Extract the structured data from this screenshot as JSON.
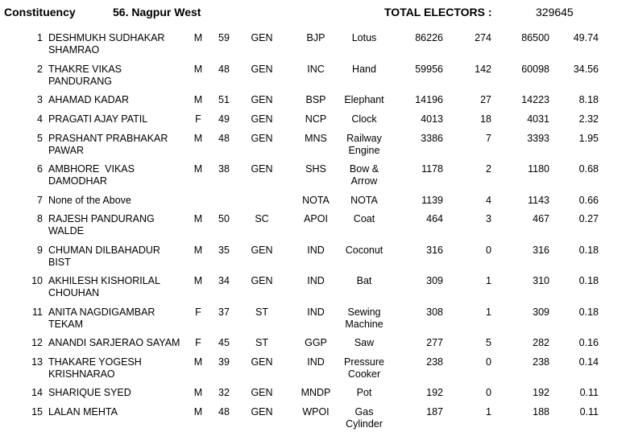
{
  "header": {
    "label": "Constituency",
    "constituency": "56. Nagpur West",
    "electors_label": "TOTAL ELECTORS :",
    "electors": 329645
  },
  "table": {
    "rows": [
      {
        "no": 1,
        "name": [
          "DESHMUKH SUDHAKAR",
          "SHAMRAO"
        ],
        "sex": "M",
        "age": 59,
        "category": "GEN",
        "party": "BJP",
        "symbol": [
          "Lotus"
        ],
        "evm": 86226,
        "postal": 274,
        "total": 86500,
        "percent": 49.74
      },
      {
        "no": 2,
        "name": [
          "THAKRE VIKAS",
          "PANDURANG"
        ],
        "sex": "M",
        "age": 48,
        "category": "GEN",
        "party": "INC",
        "symbol": [
          "Hand"
        ],
        "evm": 59956,
        "postal": 142,
        "total": 60098,
        "percent": 34.56
      },
      {
        "no": 3,
        "name": [
          "AHAMAD KADAR"
        ],
        "sex": "M",
        "age": 51,
        "category": "GEN",
        "party": "BSP",
        "symbol": [
          "Elephant"
        ],
        "evm": 14196,
        "postal": 27,
        "total": 14223,
        "percent": 8.18
      },
      {
        "no": 4,
        "name": [
          "PRAGATI AJAY PATIL"
        ],
        "sex": "F",
        "age": 49,
        "category": "GEN",
        "party": "NCP",
        "symbol": [
          "Clock"
        ],
        "evm": 4013,
        "postal": 18,
        "total": 4031,
        "percent": 2.32
      },
      {
        "no": 5,
        "name": [
          "PRASHANT PRABHAKAR",
          "PAWAR"
        ],
        "sex": "M",
        "age": 48,
        "category": "GEN",
        "party": "MNS",
        "symbol": [
          "Railway",
          "Engine"
        ],
        "evm": 3386,
        "postal": 7,
        "total": 3393,
        "percent": 1.95
      },
      {
        "no": 6,
        "name": [
          "AMBHORE  VIKAS",
          "DAMODHAR"
        ],
        "sex": "M",
        "age": 38,
        "category": "GEN",
        "party": "SHS",
        "symbol": [
          "Bow &",
          "Arrow"
        ],
        "evm": 1178,
        "postal": 2,
        "total": 1180,
        "percent": 0.68
      },
      {
        "no": 7,
        "name": [
          "None of the Above"
        ],
        "sex": null,
        "age": null,
        "category": null,
        "party": "NOTA",
        "symbol": [
          "NOTA"
        ],
        "evm": 1139,
        "postal": 4,
        "total": 1143,
        "percent": 0.66
      },
      {
        "no": 8,
        "name": [
          "RAJESH PANDURANG",
          "WALDE"
        ],
        "sex": "M",
        "age": 50,
        "category": "SC",
        "party": "APOI",
        "symbol": [
          "Coat"
        ],
        "evm": 464,
        "postal": 3,
        "total": 467,
        "percent": 0.27
      },
      {
        "no": 9,
        "name": [
          "CHUMAN DILBAHADUR",
          "BIST"
        ],
        "sex": "M",
        "age": 35,
        "category": "GEN",
        "party": "IND",
        "symbol": [
          "Coconut"
        ],
        "evm": 316,
        "postal": 0,
        "total": 316,
        "percent": 0.18
      },
      {
        "no": 10,
        "name": [
          "AKHILESH KISHORILAL",
          "CHOUHAN"
        ],
        "sex": "M",
        "age": 34,
        "category": "GEN",
        "party": "IND",
        "symbol": [
          "Bat"
        ],
        "evm": 309,
        "postal": 1,
        "total": 310,
        "percent": 0.18
      },
      {
        "no": 11,
        "name": [
          "ANITA NAGDIGAMBAR",
          "TEKAM"
        ],
        "sex": "F",
        "age": 37,
        "category": "ST",
        "party": "IND",
        "symbol": [
          "Sewing",
          "Machine"
        ],
        "evm": 308,
        "postal": 1,
        "total": 309,
        "percent": 0.18
      },
      {
        "no": 12,
        "name": [
          "ANANDI SARJERAO SAYAM"
        ],
        "sex": "F",
        "age": 45,
        "category": "ST",
        "party": "GGP",
        "symbol": [
          "Saw"
        ],
        "evm": 277,
        "postal": 5,
        "total": 282,
        "percent": 0.16
      },
      {
        "no": 13,
        "name": [
          "THAKARE YOGESH",
          "KRISHNARAO"
        ],
        "sex": "M",
        "age": 39,
        "category": "GEN",
        "party": "IND",
        "symbol": [
          "Pressure",
          "Cooker"
        ],
        "evm": 238,
        "postal": 0,
        "total": 238,
        "percent": 0.14
      },
      {
        "no": 14,
        "name": [
          "SHARIQUE SYED"
        ],
        "sex": "M",
        "age": 32,
        "category": "GEN",
        "party": "MNDP",
        "symbol": [
          "Pot"
        ],
        "evm": 192,
        "postal": 0,
        "total": 192,
        "percent": 0.11
      },
      {
        "no": 15,
        "name": [
          "LALAN MEHTA"
        ],
        "sex": "M",
        "age": 48,
        "category": "GEN",
        "party": "WPOI",
        "symbol": [
          "Gas",
          "Cylinder"
        ],
        "evm": 187,
        "postal": 1,
        "total": 188,
        "percent": 0.11
      }
    ]
  }
}
